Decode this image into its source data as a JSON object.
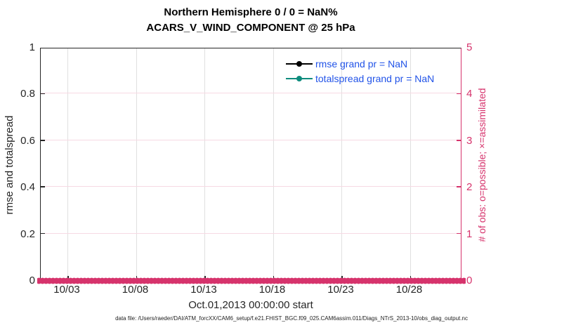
{
  "title": {
    "line1": "Northern Hemisphere 0 / 0 = NaN%",
    "line2": "ACARS_V_WIND_COMPONENT @ 25 hPa"
  },
  "legend": {
    "items": [
      {
        "label": "rmse grand pr = NaN",
        "color": "#000000"
      },
      {
        "label": "totalspread grand pr = NaN",
        "color": "#0e8c7d"
      }
    ],
    "text_color": "#2153e8"
  },
  "left_axis": {
    "label": "rmse and totalspread",
    "ticks": [
      "0",
      "0.2",
      "0.4",
      "0.6",
      "0.8",
      "1"
    ],
    "color": "#262626"
  },
  "right_axis": {
    "label": "# of obs: o=possible; ×=assimilated",
    "ticks": [
      "0",
      "1",
      "2",
      "3",
      "4",
      "5"
    ],
    "color": "#d6336c"
  },
  "x_axis": {
    "label": "Oct.01,2013 00:00:00 start",
    "ticks": [
      "10/03",
      "10/08",
      "10/13",
      "10/18",
      "10/23",
      "10/28"
    ]
  },
  "footer": "data file: /Users/raeder/DAI/ATM_forcXX/CAM6_setup/f.e21.FHIST_BGC.f09_025.CAM6assim.011/Diags_NTrS_2013-10/obs_diag_output.nc",
  "chart_data": {
    "type": "line",
    "title": "Northern Hemisphere 0 / 0 = NaN%",
    "subtitle": "ACARS_V_WIND_COMPONENT @ 25 hPa",
    "xlabel": "Oct.01,2013 00:00:00 start",
    "ylabel_left": "rmse and totalspread",
    "ylabel_right": "# of obs: o=possible; ×=assimilated",
    "x_ticks": [
      "10/03",
      "10/08",
      "10/13",
      "10/18",
      "10/23",
      "10/28"
    ],
    "x_range": [
      "Oct 01 2013",
      "Oct 31 2013"
    ],
    "ylim_left": [
      0,
      1
    ],
    "ylim_right": [
      0,
      5
    ],
    "grid": true,
    "legend_position": "upper right inside",
    "series": [
      {
        "name": "rmse grand pr = NaN",
        "axis": "left",
        "color": "#000000",
        "marker": "filled-circle",
        "values": "NaN (no line drawn)"
      },
      {
        "name": "totalspread grand pr = NaN",
        "axis": "left",
        "color": "#0e8c7d",
        "marker": "filled-circle",
        "values": "NaN (no line drawn)"
      },
      {
        "name": "# of obs possible (o)",
        "axis": "right",
        "color": "#d6336c",
        "marker": "o",
        "value_constant": 0,
        "note": "dense markers at every assimilation time along y=0"
      },
      {
        "name": "# of obs assimilated (×)",
        "axis": "right",
        "color": "#d6336c",
        "marker": "×",
        "value_constant": 0,
        "note": "dense markers at every assimilation time along y=0"
      }
    ],
    "stats": {
      "possible": 0,
      "assimilated": 0,
      "percent": "NaN%"
    }
  }
}
